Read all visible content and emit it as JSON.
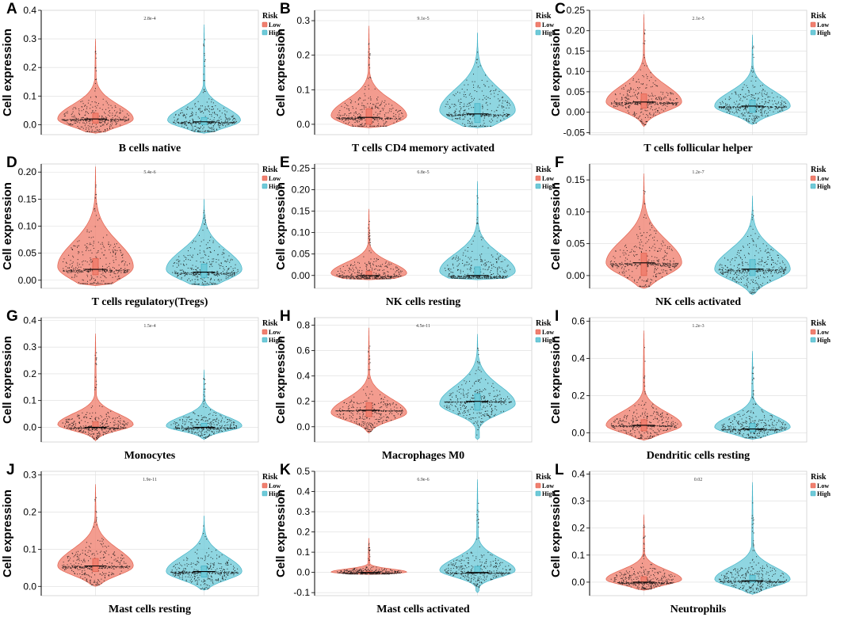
{
  "figure": {
    "ylabel": "Cell expression",
    "legend": {
      "title": "Risk",
      "entries": [
        "Low",
        "High"
      ]
    },
    "colors": {
      "Low": "#f08070",
      "High": "#6fcad8",
      "LowEdge": "#e2624f",
      "HighEdge": "#45b4c8",
      "grid": "#dcdcdc"
    }
  },
  "chart_data": [
    {
      "type": "violin",
      "letter": "A",
      "title": "B cells native",
      "pvalue": "2.8e-4",
      "ylim": [
        -0.035,
        0.4
      ],
      "ticks": [
        0.0,
        0.1,
        0.2,
        0.3,
        0.4
      ],
      "tick_labels": [
        "0.0",
        "0.1",
        "0.2",
        "0.3",
        "0.4"
      ],
      "groups": [
        {
          "name": "Low",
          "min": -0.03,
          "max": 0.3,
          "median": 0.02,
          "q1": 0.005,
          "q3": 0.04,
          "mode": 0.02,
          "width": 0.85,
          "spread": 0.05
        },
        {
          "name": "High",
          "min": -0.03,
          "max": 0.35,
          "median": 0.01,
          "q1": 0.0,
          "q3": 0.025,
          "mode": 0.015,
          "width": 0.82,
          "spread": 0.045
        }
      ]
    },
    {
      "type": "violin",
      "letter": "B",
      "title": "T cells CD4 memory activated",
      "pvalue": "9.1e-5",
      "ylim": [
        -0.03,
        0.33
      ],
      "ticks": [
        0.0,
        0.1,
        0.2,
        0.3
      ],
      "tick_labels": [
        "0.0",
        "0.1",
        "0.2",
        "0.3"
      ],
      "groups": [
        {
          "name": "Low",
          "min": -0.01,
          "max": 0.285,
          "median": 0.02,
          "q1": 0.0,
          "q3": 0.045,
          "mode": 0.025,
          "width": 0.85,
          "spread": 0.045
        },
        {
          "name": "High",
          "min": -0.01,
          "max": 0.265,
          "median": 0.03,
          "q1": 0.005,
          "q3": 0.06,
          "mode": 0.04,
          "width": 0.85,
          "spread": 0.06
        }
      ]
    },
    {
      "type": "violin",
      "letter": "C",
      "title": "T cells follicular helper",
      "pvalue": "2.1e-5",
      "ylim": [
        -0.055,
        0.25
      ],
      "ticks": [
        -0.05,
        0.0,
        0.05,
        0.1,
        0.15,
        0.2,
        0.25
      ],
      "tick_labels": [
        "-0.05",
        "0.00",
        "0.05",
        "0.10",
        "0.15",
        "0.20",
        "0.25"
      ],
      "groups": [
        {
          "name": "Low",
          "min": -0.035,
          "max": 0.24,
          "median": 0.025,
          "q1": 0.01,
          "q3": 0.045,
          "mode": 0.025,
          "width": 0.85,
          "spread": 0.04
        },
        {
          "name": "High",
          "min": -0.03,
          "max": 0.19,
          "median": 0.015,
          "q1": 0.0,
          "q3": 0.03,
          "mode": 0.015,
          "width": 0.85,
          "spread": 0.035
        }
      ]
    },
    {
      "type": "violin",
      "letter": "D",
      "title": "T cells regulatory(Tregs)",
      "pvalue": "5.4e-6",
      "ylim": [
        -0.015,
        0.215
      ],
      "ticks": [
        0.0,
        0.05,
        0.1,
        0.15,
        0.2
      ],
      "tick_labels": [
        "0.00",
        "0.05",
        "0.10",
        "0.15",
        "0.20"
      ],
      "groups": [
        {
          "name": "Low",
          "min": -0.01,
          "max": 0.21,
          "median": 0.02,
          "q1": 0.01,
          "q3": 0.04,
          "mode": 0.025,
          "width": 0.85,
          "spread": 0.045
        },
        {
          "name": "High",
          "min": -0.01,
          "max": 0.15,
          "median": 0.015,
          "q1": 0.005,
          "q3": 0.03,
          "mode": 0.02,
          "width": 0.85,
          "spread": 0.035
        }
      ]
    },
    {
      "type": "violin",
      "letter": "E",
      "title": "NK cells resting",
      "pvalue": "6.8e-5",
      "ylim": [
        -0.03,
        0.26
      ],
      "ticks": [
        0.0,
        0.05,
        0.1,
        0.15,
        0.2,
        0.25
      ],
      "tick_labels": [
        "0.00",
        "0.05",
        "0.10",
        "0.15",
        "0.20",
        "0.25"
      ],
      "groups": [
        {
          "name": "Low",
          "min": -0.01,
          "max": 0.155,
          "median": 0.0,
          "q1": 0.0,
          "q3": 0.01,
          "mode": 0.005,
          "width": 0.85,
          "spread": 0.025
        },
        {
          "name": "High",
          "min": -0.01,
          "max": 0.22,
          "median": 0.0,
          "q1": 0.0,
          "q3": 0.02,
          "mode": 0.01,
          "width": 0.85,
          "spread": 0.04
        }
      ]
    },
    {
      "type": "violin",
      "letter": "F",
      "title": "NK cells activated",
      "pvalue": "1.2e-7",
      "ylim": [
        -0.02,
        0.175
      ],
      "ticks": [
        0.0,
        0.05,
        0.1,
        0.15
      ],
      "tick_labels": [
        "0.00",
        "0.05",
        "0.10",
        "0.15"
      ],
      "groups": [
        {
          "name": "Low",
          "min": -0.02,
          "max": 0.16,
          "median": 0.02,
          "q1": 0.0,
          "q3": 0.035,
          "mode": 0.02,
          "width": 0.85,
          "spread": 0.035
        },
        {
          "name": "High",
          "min": -0.03,
          "max": 0.125,
          "median": 0.01,
          "q1": 0.0,
          "q3": 0.025,
          "mode": 0.01,
          "width": 0.85,
          "spread": 0.03
        }
      ]
    },
    {
      "type": "violin",
      "letter": "G",
      "title": "Monocytes",
      "pvalue": "1.5e-4",
      "ylim": [
        -0.055,
        0.41
      ],
      "ticks": [
        0.0,
        0.1,
        0.2,
        0.3,
        0.4
      ],
      "tick_labels": [
        "0.0",
        "0.1",
        "0.2",
        "0.3",
        "0.4"
      ],
      "groups": [
        {
          "name": "Low",
          "min": -0.05,
          "max": 0.35,
          "median": 0.0,
          "q1": 0.0,
          "q3": 0.02,
          "mode": 0.01,
          "width": 0.85,
          "spread": 0.04
        },
        {
          "name": "High",
          "min": -0.045,
          "max": 0.215,
          "median": 0.0,
          "q1": 0.0,
          "q3": 0.015,
          "mode": 0.005,
          "width": 0.85,
          "spread": 0.035
        }
      ]
    },
    {
      "type": "violin",
      "letter": "H",
      "title": "Macrophages M0",
      "pvalue": "4.5e-11",
      "ylim": [
        -0.12,
        0.86
      ],
      "ticks": [
        0.0,
        0.2,
        0.4,
        0.6,
        0.8
      ],
      "tick_labels": [
        "0.0",
        "0.2",
        "0.4",
        "0.6",
        "0.8"
      ],
      "groups": [
        {
          "name": "Low",
          "min": -0.05,
          "max": 0.78,
          "median": 0.13,
          "q1": 0.08,
          "q3": 0.19,
          "mode": 0.11,
          "width": 0.85,
          "spread": 0.11
        },
        {
          "name": "High",
          "min": -0.1,
          "max": 0.73,
          "median": 0.2,
          "q1": 0.13,
          "q3": 0.26,
          "mode": 0.18,
          "width": 0.85,
          "spread": 0.14
        }
      ]
    },
    {
      "type": "violin",
      "letter": "I",
      "title": "Dendritic cells resting",
      "pvalue": "1.2e-3",
      "ylim": [
        -0.05,
        0.62
      ],
      "ticks": [
        0.0,
        0.2,
        0.4,
        0.6
      ],
      "tick_labels": [
        "0.0",
        "0.2",
        "0.4",
        "0.6"
      ],
      "groups": [
        {
          "name": "Low",
          "min": -0.04,
          "max": 0.55,
          "median": 0.04,
          "q1": 0.01,
          "q3": 0.07,
          "mode": 0.04,
          "width": 0.85,
          "spread": 0.07
        },
        {
          "name": "High",
          "min": -0.035,
          "max": 0.44,
          "median": 0.02,
          "q1": 0.005,
          "q3": 0.05,
          "mode": 0.03,
          "width": 0.85,
          "spread": 0.06
        }
      ]
    },
    {
      "type": "violin",
      "letter": "J",
      "title": "Mast cells resting",
      "pvalue": "1.9e-11",
      "ylim": [
        -0.025,
        0.31
      ],
      "ticks": [
        0.0,
        0.1,
        0.2,
        0.3
      ],
      "tick_labels": [
        "0.0",
        "0.1",
        "0.2",
        "0.3"
      ],
      "groups": [
        {
          "name": "Low",
          "min": 0.0,
          "max": 0.275,
          "median": 0.055,
          "q1": 0.04,
          "q3": 0.075,
          "mode": 0.055,
          "width": 0.85,
          "spread": 0.045
        },
        {
          "name": "High",
          "min": -0.01,
          "max": 0.19,
          "median": 0.04,
          "q1": 0.025,
          "q3": 0.055,
          "mode": 0.04,
          "width": 0.85,
          "spread": 0.04
        }
      ]
    },
    {
      "type": "violin",
      "letter": "K",
      "title": "Mast cells activated",
      "pvalue": "6.9e-6",
      "ylim": [
        -0.115,
        0.5
      ],
      "ticks": [
        -0.1,
        0.0,
        0.1,
        0.2,
        0.3,
        0.4,
        0.5
      ],
      "tick_labels": [
        "-0.1",
        "0.0",
        "0.1",
        "0.2",
        "0.3",
        "0.4",
        "0.5"
      ],
      "groups": [
        {
          "name": "Low",
          "min": -0.01,
          "max": 0.17,
          "median": 0.0,
          "q1": 0.0,
          "q3": 0.005,
          "mode": 0.002,
          "width": 0.85,
          "spread": 0.015
        },
        {
          "name": "High",
          "min": -0.1,
          "max": 0.46,
          "median": 0.0,
          "q1": 0.0,
          "q3": 0.03,
          "mode": 0.01,
          "width": 0.85,
          "spread": 0.06
        }
      ]
    },
    {
      "type": "violin",
      "letter": "L",
      "title": "Neutrophils",
      "pvalue": "0.02",
      "ylim": [
        -0.05,
        0.41
      ],
      "ticks": [
        0.0,
        0.1,
        0.2,
        0.3,
        0.4
      ],
      "tick_labels": [
        "0.0",
        "0.1",
        "0.2",
        "0.3",
        "0.4"
      ],
      "groups": [
        {
          "name": "Low",
          "min": -0.03,
          "max": 0.25,
          "median": 0.0,
          "q1": 0.0,
          "q3": 0.02,
          "mode": 0.01,
          "width": 0.85,
          "spread": 0.035
        },
        {
          "name": "High",
          "min": -0.045,
          "max": 0.37,
          "median": 0.005,
          "q1": 0.0,
          "q3": 0.025,
          "mode": 0.01,
          "width": 0.85,
          "spread": 0.045
        }
      ]
    }
  ]
}
